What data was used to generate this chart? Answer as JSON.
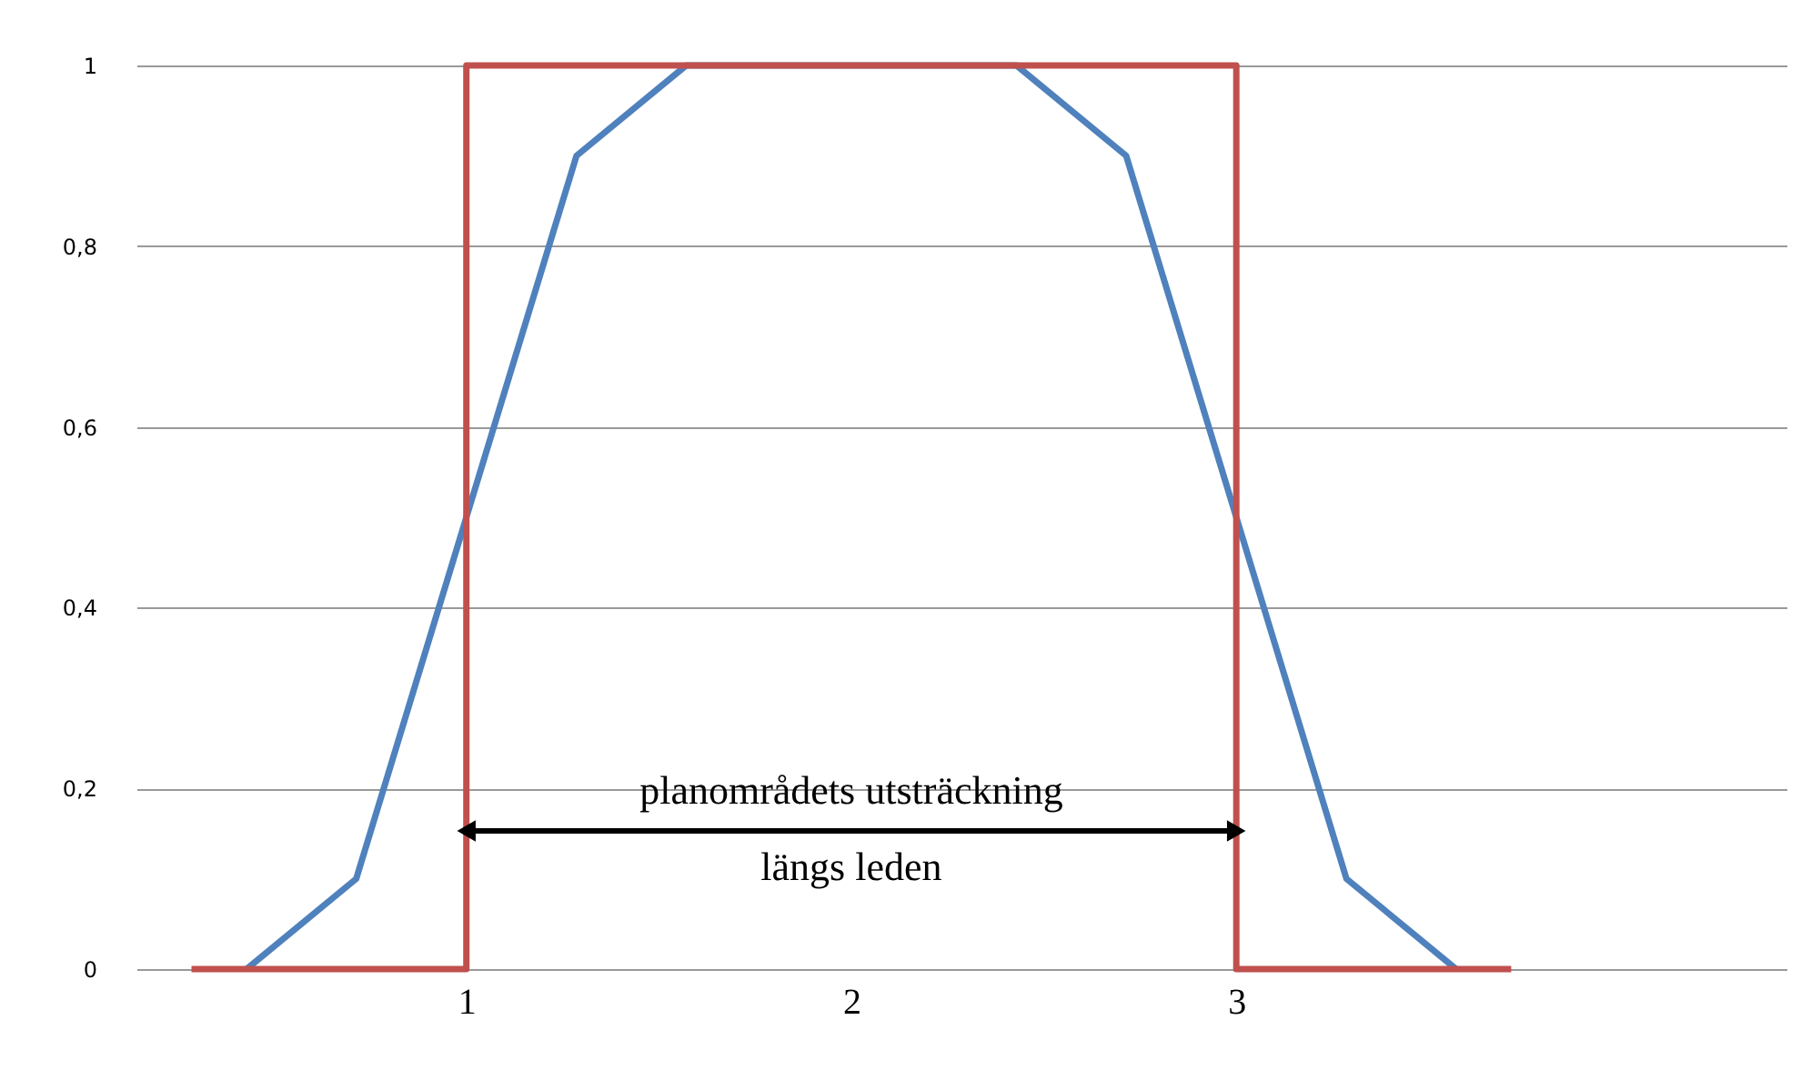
{
  "chart_data": {
    "type": "line",
    "xlim": [
      0.143,
      4.429
    ],
    "xticks": [
      1,
      2,
      3
    ],
    "ylim": [
      0,
      1
    ],
    "yticks": [
      0,
      {
        "value": 0.2,
        "label": "0,2"
      },
      {
        "value": 0.4,
        "label": "0,4"
      },
      {
        "value": 0.6,
        "label": "0,6"
      },
      {
        "value": 0.8,
        "label": "0,8"
      },
      1
    ],
    "grid": "y",
    "legend": false,
    "marker": "none",
    "line_style": "solid",
    "series": [
      {
        "color": "#4f81bd",
        "x": [
          0.429,
          0.714,
          1,
          1.286,
          1.571,
          1.857,
          2.143,
          2.429,
          2.714,
          3,
          3.286,
          3.571
        ],
        "values": [
          0,
          0.1,
          0.5,
          0.9,
          1,
          1,
          1,
          1,
          0.9,
          0.5,
          0.1,
          0
        ]
      },
      {
        "color": "#c0504d",
        "x": [
          0.286,
          1,
          1,
          3,
          3,
          3.714
        ],
        "values": [
          0,
          0,
          1,
          1,
          0,
          0
        ]
      }
    ],
    "annotations": [
      "planområdets utsträckning\nlängs leden"
    ]
  }
}
